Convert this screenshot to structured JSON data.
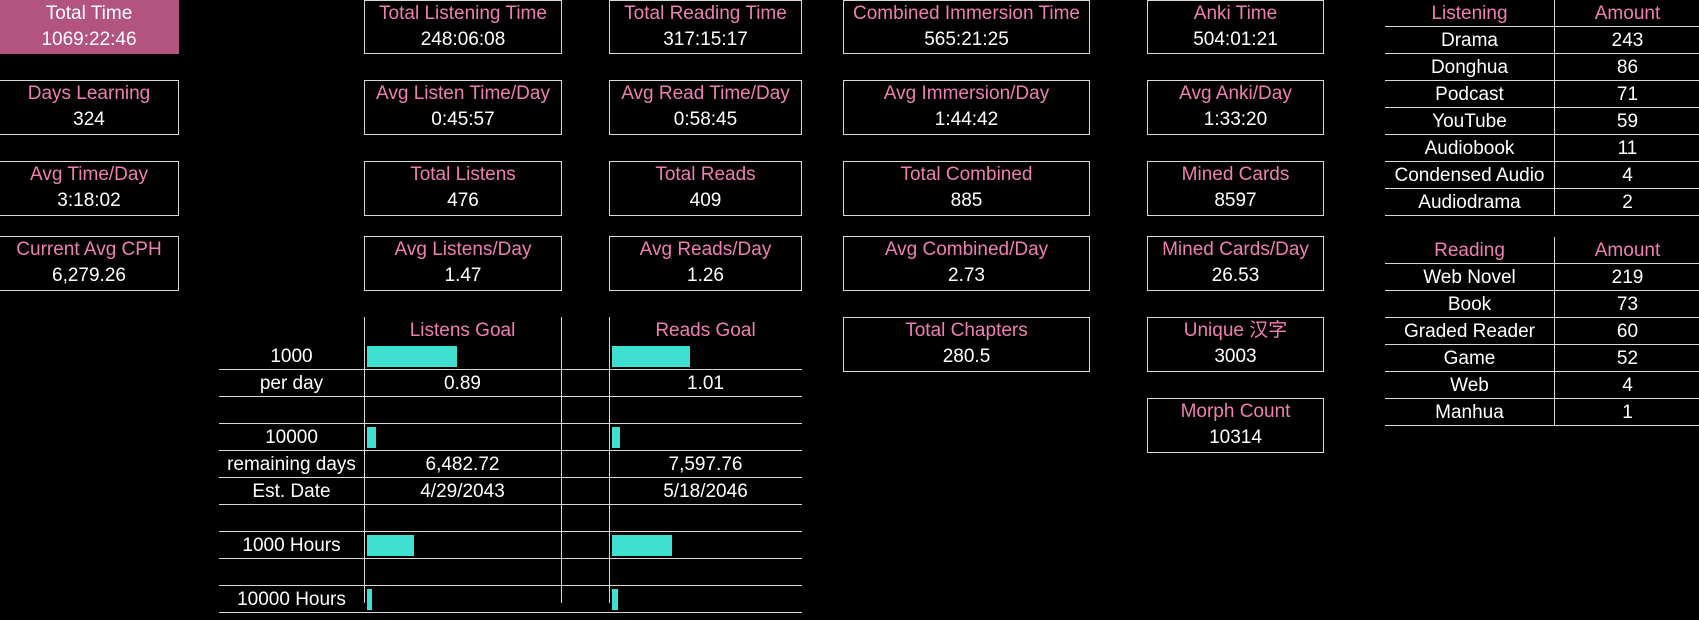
{
  "col1": [
    {
      "label": "Total Time",
      "value": "1069:22:46"
    },
    {
      "label": "Days Learning",
      "value": "324"
    },
    {
      "label": "Avg Time/Day",
      "value": "3:18:02"
    },
    {
      "label": "Current Avg CPH",
      "value": "6,279.26"
    }
  ],
  "listen": [
    {
      "label": "Total Listening Time",
      "value": "248:06:08"
    },
    {
      "label": "Avg Listen Time/Day",
      "value": "0:45:57"
    },
    {
      "label": "Total Listens",
      "value": "476"
    },
    {
      "label": "Avg Listens/Day",
      "value": "1.47"
    }
  ],
  "read": [
    {
      "label": "Total Reading Time",
      "value": "317:15:17"
    },
    {
      "label": "Avg Read Time/Day",
      "value": "0:58:45"
    },
    {
      "label": "Total Reads",
      "value": "409"
    },
    {
      "label": "Avg Reads/Day",
      "value": "1.26"
    }
  ],
  "combined": [
    {
      "label": "Combined Immersion Time",
      "value": "565:21:25"
    },
    {
      "label": "Avg Immersion/Day",
      "value": "1:44:42"
    },
    {
      "label": "Total Combined",
      "value": "885"
    },
    {
      "label": "Avg Combined/Day",
      "value": "2.73"
    },
    {
      "label": "Total Chapters",
      "value": "280.5"
    }
  ],
  "anki": [
    {
      "label": "Anki Time",
      "value": "504:01:21"
    },
    {
      "label": "Avg Anki/Day",
      "value": "1:33:20"
    },
    {
      "label": "Mined Cards",
      "value": "8597"
    },
    {
      "label": "Mined Cards/Day",
      "value": "26.53"
    },
    {
      "label": "Unique 汉字",
      "value": "3003"
    },
    {
      "label": "Morph Count",
      "value": "10314"
    }
  ],
  "goals": {
    "listens_header": "Listens Goal",
    "reads_header": "Reads Goal",
    "rows": [
      {
        "label": "1000",
        "listens_progress": 0.476,
        "reads_progress": 0.409
      },
      {
        "label": "per day",
        "listens": "0.89",
        "reads": "1.01"
      },
      {
        "label": ""
      },
      {
        "label": "10000",
        "listens_progress": 0.0476,
        "reads_progress": 0.0409
      },
      {
        "label": "remaining days",
        "listens": "6,482.72",
        "reads": "7,597.76"
      },
      {
        "label": "Est. Date",
        "listens": "4/29/2043",
        "reads": "5/18/2046"
      },
      {
        "label": ""
      },
      {
        "label": "1000 Hours",
        "listens_progress": 0.248,
        "reads_progress": 0.317
      },
      {
        "label": ""
      },
      {
        "label": "10000 Hours",
        "listens_progress": 0.0248,
        "reads_progress": 0.0317
      }
    ]
  },
  "listening_table": {
    "headers": [
      "Listening",
      "Amount"
    ],
    "rows": [
      [
        "Drama",
        "243"
      ],
      [
        "Donghua",
        "86"
      ],
      [
        "Podcast",
        "71"
      ],
      [
        "YouTube",
        "59"
      ],
      [
        "Audiobook",
        "11"
      ],
      [
        "Condensed Audio",
        "4"
      ],
      [
        "Audiodrama",
        "2"
      ]
    ]
  },
  "reading_table": {
    "headers": [
      "Reading",
      "Amount"
    ],
    "rows": [
      [
        "Web Novel",
        "219"
      ],
      [
        "Book",
        "73"
      ],
      [
        "Graded Reader",
        "60"
      ],
      [
        "Game",
        "52"
      ],
      [
        "Web",
        "4"
      ],
      [
        "Manhua",
        "1"
      ]
    ]
  },
  "colors": {
    "accent": "#ee7fb3",
    "highlight": "#b3547f",
    "bar": "#40e0d0"
  }
}
